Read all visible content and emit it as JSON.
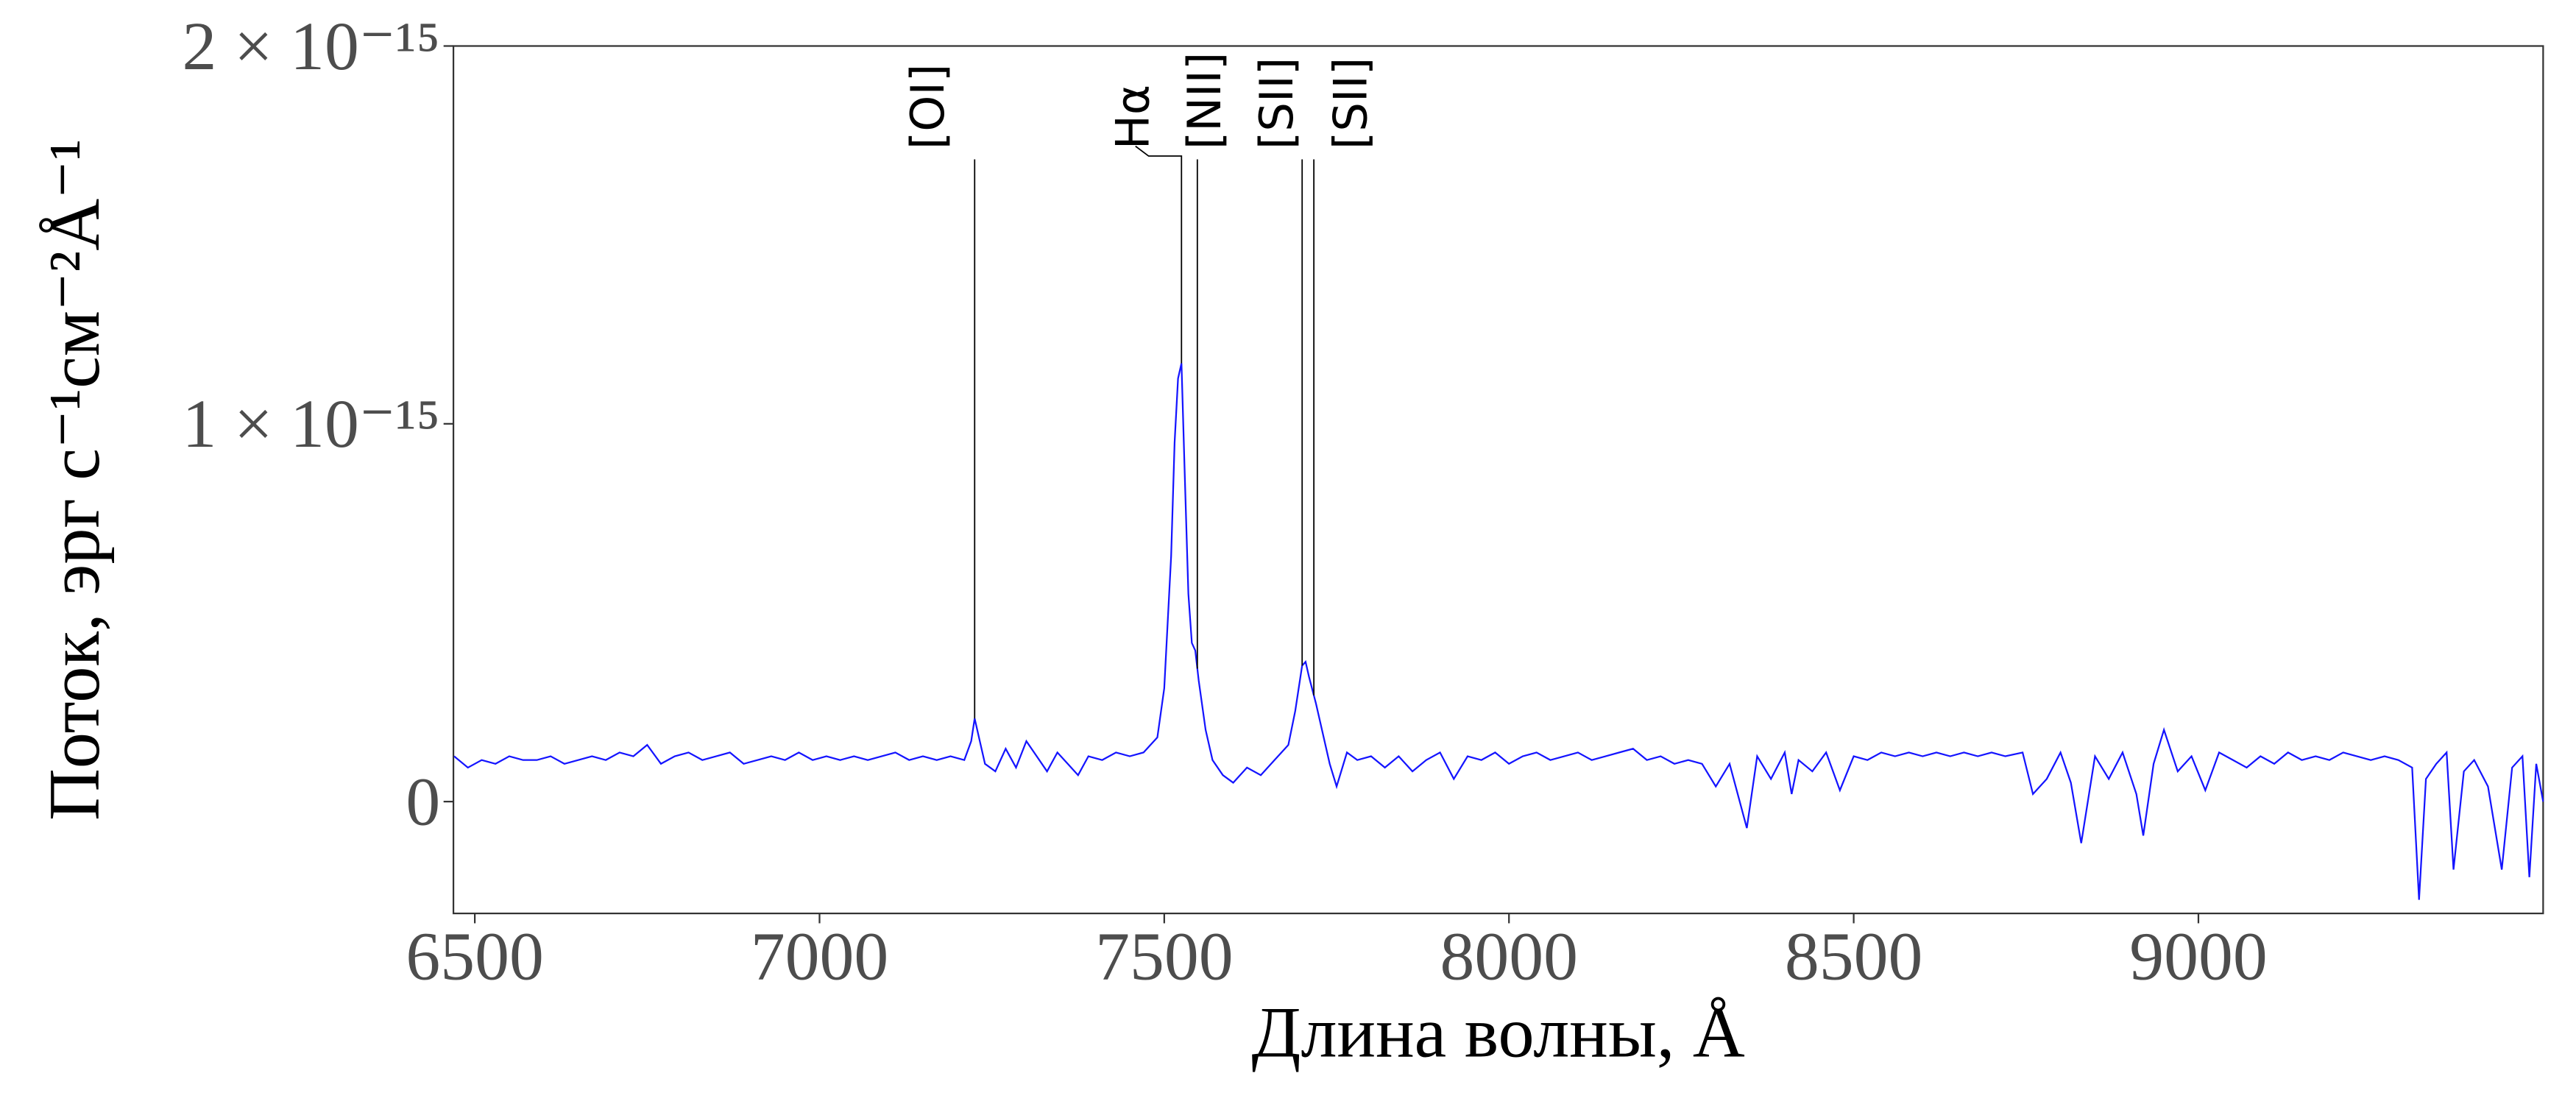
{
  "chart_data": {
    "type": "line",
    "xlabel": "Длина волны, Å",
    "ylabel": "Поток, эрг с⁻¹см⁻²Å⁻¹",
    "xlim": [
      6469,
      9500
    ],
    "ylim": [
      -2.96e-16,
      2e-15
    ],
    "xticks": [
      6500,
      7000,
      7500,
      8000,
      8500,
      9000
    ],
    "yticks": [
      {
        "value": 0,
        "label": "0"
      },
      {
        "value": 1e-15,
        "label": "1 × 10⁻¹⁵"
      },
      {
        "value": 2e-15,
        "label": "2 × 10⁻¹⁵"
      }
    ],
    "grid": false,
    "series": [
      {
        "color": "#1414ff",
        "x": [
          6470,
          6490,
          6510,
          6530,
          6550,
          6570,
          6590,
          6610,
          6630,
          6650,
          6670,
          6690,
          6710,
          6730,
          6750,
          6770,
          6790,
          6810,
          6830,
          6850,
          6870,
          6890,
          6910,
          6930,
          6950,
          6970,
          6990,
          7010,
          7030,
          7050,
          7070,
          7090,
          7110,
          7130,
          7150,
          7170,
          7190,
          7210,
          7220,
          7225,
          7230,
          7240,
          7255,
          7270,
          7285,
          7300,
          7315,
          7330,
          7345,
          7360,
          7375,
          7390,
          7410,
          7430,
          7450,
          7470,
          7490,
          7500,
          7510,
          7515,
          7520,
          7525,
          7530,
          7535,
          7540,
          7545,
          7550,
          7560,
          7570,
          7585,
          7600,
          7620,
          7640,
          7660,
          7680,
          7690,
          7700,
          7705,
          7710,
          7720,
          7730,
          7740,
          7750,
          7765,
          7780,
          7800,
          7820,
          7840,
          7860,
          7880,
          7900,
          7920,
          7940,
          7960,
          7980,
          8000,
          8020,
          8040,
          8060,
          8080,
          8100,
          8120,
          8140,
          8160,
          8180,
          8200,
          8220,
          8240,
          8260,
          8280,
          8300,
          8320,
          8345,
          8360,
          8380,
          8400,
          8410,
          8420,
          8440,
          8460,
          8480,
          8500,
          8520,
          8540,
          8560,
          8580,
          8600,
          8620,
          8640,
          8660,
          8680,
          8700,
          8720,
          8745,
          8760,
          8780,
          8800,
          8815,
          8830,
          8850,
          8870,
          8890,
          8910,
          8920,
          8935,
          8950,
          8970,
          8990,
          9010,
          9030,
          9050,
          9070,
          9090,
          9110,
          9130,
          9150,
          9170,
          9190,
          9210,
          9230,
          9250,
          9270,
          9290,
          9310,
          9320,
          9330,
          9345,
          9360,
          9370,
          9385,
          9400,
          9420,
          9440,
          9455,
          9470,
          9480,
          9490,
          9500
        ],
        "values": [
          1.2e-16,
          9e-17,
          1.1e-16,
          1e-16,
          1.2e-16,
          1.1e-16,
          1.1e-16,
          1.2e-16,
          1e-16,
          1.1e-16,
          1.2e-16,
          1.1e-16,
          1.3e-16,
          1.2e-16,
          1.5e-16,
          1e-16,
          1.2e-16,
          1.3e-16,
          1.1e-16,
          1.2e-16,
          1.3e-16,
          1e-16,
          1.1e-16,
          1.2e-16,
          1.1e-16,
          1.3e-16,
          1.1e-16,
          1.2e-16,
          1.1e-16,
          1.2e-16,
          1.1e-16,
          1.2e-16,
          1.3e-16,
          1.1e-16,
          1.2e-16,
          1.1e-16,
          1.2e-16,
          1.1e-16,
          1.6e-16,
          2.2e-16,
          1.8e-16,
          1e-16,
          8e-17,
          1.4e-16,
          9e-17,
          1.6e-16,
          1.2e-16,
          8e-17,
          1.3e-16,
          1e-16,
          7e-17,
          1.2e-16,
          1.1e-16,
          1.3e-16,
          1.2e-16,
          1.3e-16,
          1.7e-16,
          3e-16,
          6.5e-16,
          9.5e-16,
          1.12e-15,
          1.16e-15,
          8.5e-16,
          5.5e-16,
          4.2e-16,
          4e-16,
          3.2e-16,
          1.9e-16,
          1.1e-16,
          7e-17,
          5e-17,
          9e-17,
          7e-17,
          1.1e-16,
          1.5e-16,
          2.4e-16,
          3.6e-16,
          3.7e-16,
          3.3e-16,
          2.6e-16,
          1.8e-16,
          1e-16,
          4e-17,
          1.3e-16,
          1.1e-16,
          1.2e-16,
          9e-17,
          1.2e-16,
          8e-17,
          1.1e-16,
          1.3e-16,
          6e-17,
          1.2e-16,
          1.1e-16,
          1.3e-16,
          1e-16,
          1.2e-16,
          1.3e-16,
          1.1e-16,
          1.2e-16,
          1.3e-16,
          1.1e-16,
          1.2e-16,
          1.3e-16,
          1.4e-16,
          1.1e-16,
          1.2e-16,
          1e-16,
          1.1e-16,
          1e-16,
          4e-17,
          1e-16,
          -7e-17,
          1.2e-16,
          6e-17,
          1.3e-16,
          2e-17,
          1.1e-16,
          8e-17,
          1.3e-16,
          3e-17,
          1.2e-16,
          1.1e-16,
          1.3e-16,
          1.2e-16,
          1.3e-16,
          1.2e-16,
          1.3e-16,
          1.2e-16,
          1.3e-16,
          1.2e-16,
          1.3e-16,
          1.2e-16,
          1.3e-16,
          2e-17,
          6e-17,
          1.3e-16,
          5e-17,
          -1.1e-16,
          1.2e-16,
          6e-17,
          1.3e-16,
          2e-17,
          -9e-17,
          1e-16,
          1.9e-16,
          8e-17,
          1.2e-16,
          3e-17,
          1.3e-16,
          1.1e-16,
          9e-17,
          1.2e-16,
          1e-16,
          1.3e-16,
          1.1e-16,
          1.2e-16,
          1.1e-16,
          1.3e-16,
          1.2e-16,
          1.1e-16,
          1.2e-16,
          1.1e-16,
          9e-17,
          -2.6e-16,
          6e-17,
          1e-16,
          1.3e-16,
          -1.8e-16,
          8e-17,
          1.1e-16,
          4e-17,
          -1.8e-16,
          9e-17,
          1.2e-16,
          -2e-16,
          1e-16,
          0
        ]
      }
    ],
    "line_top": 1.7e-15,
    "annotations": [
      {
        "label": "[OI]",
        "x": 7225
      },
      {
        "label": "Hα",
        "x": 7525
      },
      {
        "label": "[NII]",
        "x": 7548
      },
      {
        "label": "[SII]",
        "x": 7700
      },
      {
        "label": "[SII]",
        "x": 7717
      }
    ]
  }
}
